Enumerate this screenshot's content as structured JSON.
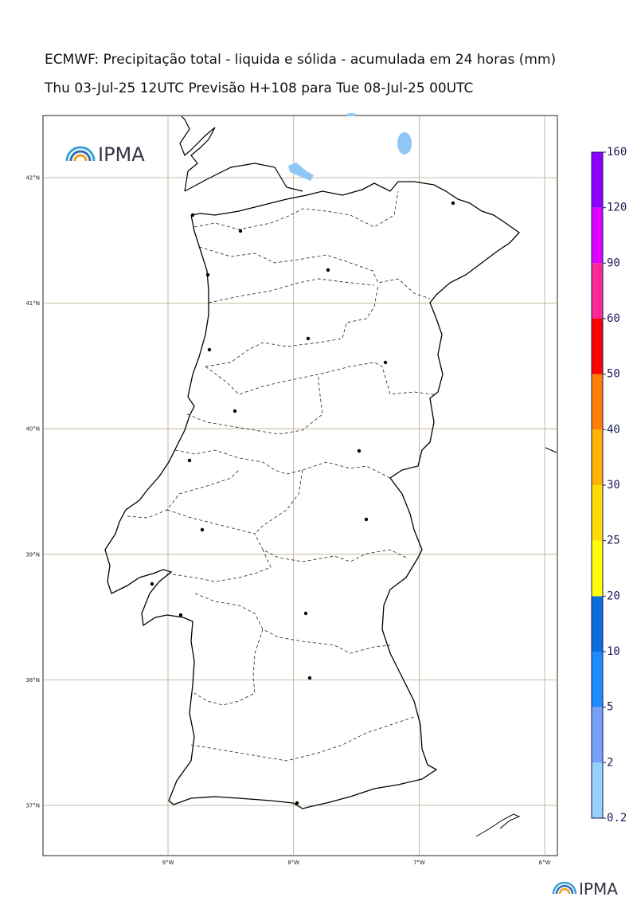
{
  "header": {
    "title": "ECMWF: Precipitação total - liquida e sólida - acumulada em 24 horas (mm)",
    "subtitle": "Thu 03-Jul-25 12UTC Previsão H+108 para Tue 08-Jul-25 00UTC"
  },
  "logo": {
    "top": "IPMA",
    "bottom": "IPMA"
  },
  "map": {
    "lat_grid": [
      {
        "value": 42,
        "label": "42°N"
      },
      {
        "value": 41,
        "label": "41°N"
      },
      {
        "value": 40,
        "label": "40°N"
      },
      {
        "value": 39,
        "label": "39°N"
      },
      {
        "value": 38,
        "label": "38°N"
      },
      {
        "value": 37,
        "label": "37°N"
      }
    ],
    "lon_grid": [
      {
        "value": -9,
        "label": "9°W"
      },
      {
        "value": -8,
        "label": "8°W"
      },
      {
        "value": -7,
        "label": "7°W"
      },
      {
        "value": -6,
        "label": "6°W"
      }
    ]
  },
  "colorbar": {
    "levels": [
      0.2,
      2,
      5,
      10,
      20,
      25,
      30,
      40,
      50,
      60,
      90,
      120,
      160
    ],
    "colors": [
      "#96d2fa",
      "#78a0f5",
      "#1e8cff",
      "#0a6edc",
      "#ffff00",
      "#ffdc00",
      "#ffb400",
      "#ff7d00",
      "#ff0000",
      "#ff2896",
      "#dc00ff",
      "#8c00ff"
    ]
  }
}
